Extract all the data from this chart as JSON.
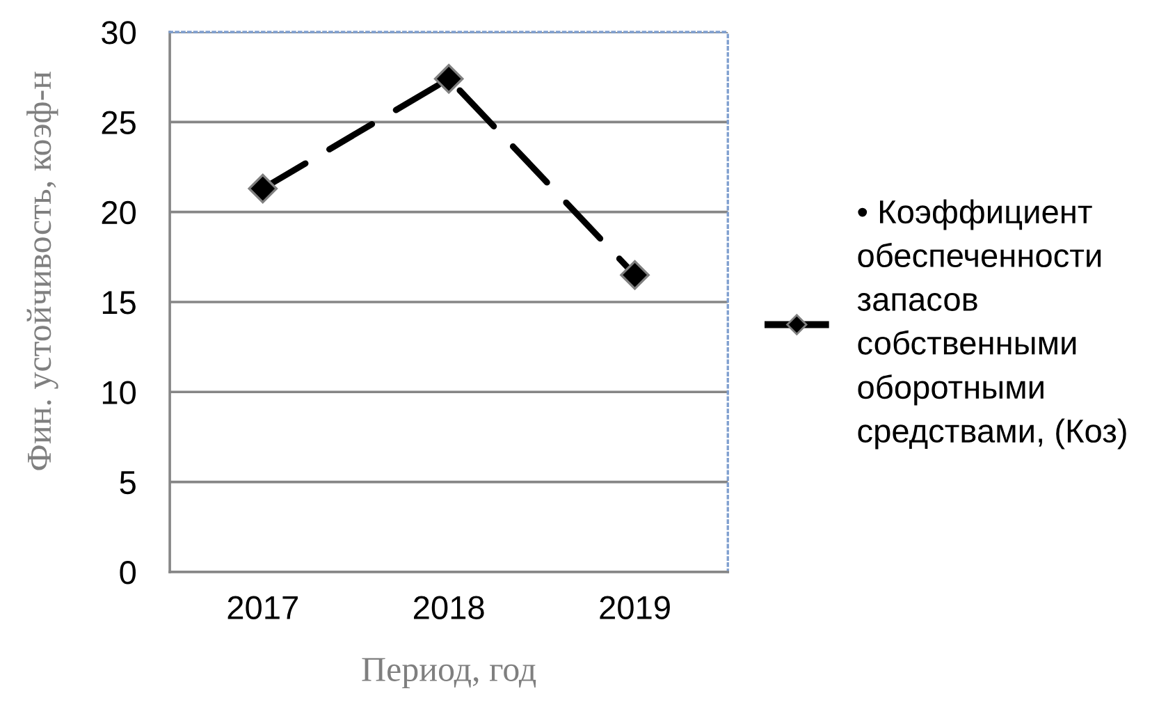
{
  "chart_data": {
    "type": "line",
    "categories": [
      "2017",
      "2018",
      "2019"
    ],
    "series": [
      {
        "name": "• Коэффициент обеспеченности запасов собственными оборотными средствами, (Коз)",
        "color": "#000000",
        "values": [
          21.3,
          27.4,
          16.5
        ]
      }
    ],
    "xlabel": "Период, год",
    "ylabel": "Фин. устойчивость, коэф-н",
    "ylim": [
      0,
      30
    ],
    "yticks": [
      0,
      5,
      10,
      15,
      20,
      25,
      30
    ],
    "grid": "y",
    "legend": "right",
    "marker": "diamond",
    "line_style": "dashed"
  }
}
